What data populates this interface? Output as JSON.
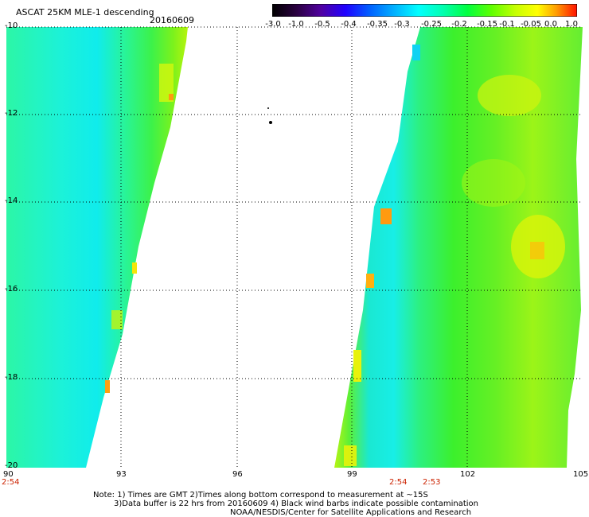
{
  "header": {
    "title": "ASCAT 25KM MLE-1 descending",
    "date": "20160609"
  },
  "colorbar": {
    "labels": [
      "-3.0",
      "-1.0",
      "-0.5",
      "-0.4",
      "-0.35",
      "-0.3",
      "-0.25",
      "-0.2",
      "-0.15",
      "-0.1",
      "-0.05",
      "0.0",
      "1.0"
    ],
    "colors": [
      "#000000",
      "#3a0060",
      "#5a00b0",
      "#0030ff",
      "#0080ff",
      "#00d0ff",
      "#00ffe0",
      "#00ff80",
      "#30ff00",
      "#a0ff00",
      "#ffff00",
      "#ffa000",
      "#ff2000"
    ]
  },
  "axes": {
    "lon_ticks": [
      "90",
      "93",
      "96",
      "99",
      "102",
      "105"
    ],
    "lat_ticks": [
      "-10",
      "-12",
      "-14",
      "-16",
      "-18",
      "-20"
    ]
  },
  "pass_times": {
    "left": "2:54",
    "right_a": "2:54",
    "right_b": "2:53"
  },
  "notes": {
    "line1": "Note: 1) Times are GMT 2)Times along bottom correspond to measurement at ~15S",
    "line2": "3)Data buffer is 22 hrs from 20160609 4) Black wind barbs indicate possible contamination",
    "line3": "NOAA/NESDIS/Center for Satellite Applications and Research"
  }
}
